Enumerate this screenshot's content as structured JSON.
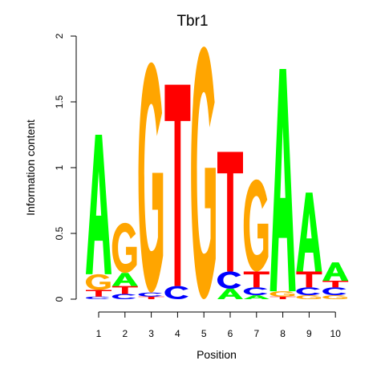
{
  "chart_data": {
    "type": "sequence-logo",
    "title": "Tbr1",
    "xlabel": "Position",
    "ylabel": "Information content",
    "ylim": [
      0,
      2
    ],
    "yticks": [
      0,
      0.5,
      1,
      1.5,
      2
    ],
    "ytick_labels": [
      "0",
      "0.5",
      "1",
      "1.5",
      "2"
    ],
    "positions": [
      "1",
      "2",
      "3",
      "4",
      "5",
      "6",
      "7",
      "8",
      "9",
      "10"
    ],
    "colors": {
      "A": "#00ff00",
      "C": "#0000ff",
      "G": "#ffa500",
      "T": "#ff0000"
    },
    "stacks": [
      [
        {
          "base": "C",
          "value": 0.02
        },
        {
          "base": "T",
          "value": 0.05
        },
        {
          "base": "G",
          "value": 0.12
        },
        {
          "base": "A",
          "value": 1.06
        }
      ],
      [
        {
          "base": "C",
          "value": 0.04
        },
        {
          "base": "T",
          "value": 0.06
        },
        {
          "base": "A",
          "value": 0.1
        },
        {
          "base": "G",
          "value": 0.38
        }
      ],
      [
        {
          "base": "T",
          "value": 0.02
        },
        {
          "base": "C",
          "value": 0.03
        },
        {
          "base": "G",
          "value": 1.75
        }
      ],
      [
        {
          "base": "C",
          "value": 0.1
        },
        {
          "base": "T",
          "value": 1.53
        }
      ],
      [
        {
          "base": "G",
          "value": 1.92
        }
      ],
      [
        {
          "base": "A",
          "value": 0.08
        },
        {
          "base": "C",
          "value": 0.13
        },
        {
          "base": "T",
          "value": 0.91
        }
      ],
      [
        {
          "base": "A",
          "value": 0.03
        },
        {
          "base": "C",
          "value": 0.06
        },
        {
          "base": "T",
          "value": 0.12
        },
        {
          "base": "G",
          "value": 0.7
        }
      ],
      [
        {
          "base": "T",
          "value": 0.02
        },
        {
          "base": "G",
          "value": 0.04
        },
        {
          "base": "A",
          "value": 1.69
        }
      ],
      [
        {
          "base": "G",
          "value": 0.03
        },
        {
          "base": "C",
          "value": 0.06
        },
        {
          "base": "T",
          "value": 0.12
        },
        {
          "base": "A",
          "value": 0.6
        }
      ],
      [
        {
          "base": "G",
          "value": 0.03
        },
        {
          "base": "C",
          "value": 0.06
        },
        {
          "base": "T",
          "value": 0.05
        },
        {
          "base": "A",
          "value": 0.14
        }
      ]
    ]
  }
}
